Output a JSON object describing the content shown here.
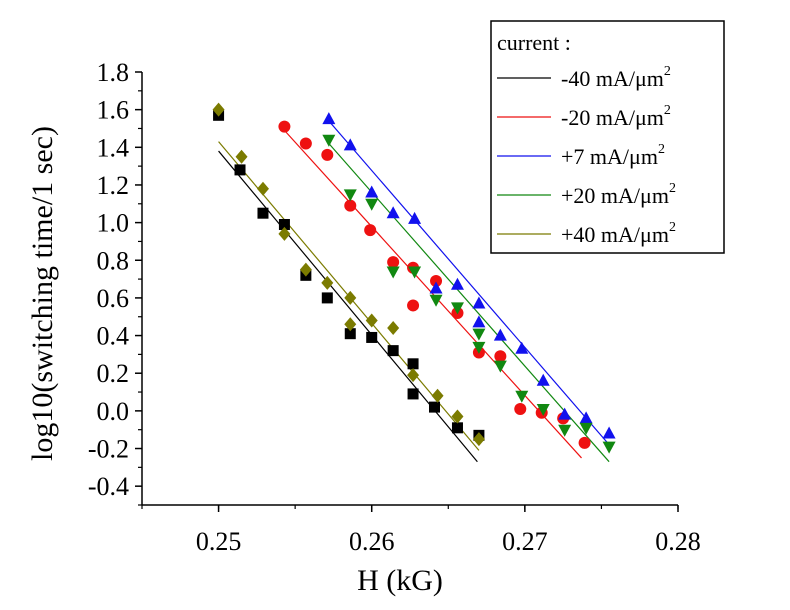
{
  "chart_data": {
    "type": "scatter",
    "xlabel": "H (kG)",
    "ylabel": "log10(switching time/1 sec)",
    "xlim": [
      0.245,
      0.28
    ],
    "ylim": [
      -0.5,
      1.8
    ],
    "x_ticks": [
      "0.25",
      "0.26",
      "0.27",
      "0.28"
    ],
    "x_tick_values": [
      0.25,
      0.26,
      0.27,
      0.28
    ],
    "y_ticks": [
      "1.8",
      "1.6",
      "1.4",
      "1.2",
      "1.0",
      "0.8",
      "0.6",
      "0.4",
      "0.2",
      "0.0",
      "-0.2",
      "-0.4"
    ],
    "y_tick_values": [
      1.8,
      1.6,
      1.4,
      1.2,
      1.0,
      0.8,
      0.6,
      0.4,
      0.2,
      0.0,
      -0.2,
      -0.4
    ],
    "grid": false,
    "legend": {
      "title": "current :",
      "position": "top-right",
      "entries": [
        {
          "label_main": "-40 mA/μm",
          "label_sup": "2"
        },
        {
          "label_main": "-20 mA/μm",
          "label_sup": "2"
        },
        {
          "label_main": "+7  mA/μm",
          "label_sup": "2"
        },
        {
          "label_main": "+20  mA/μm",
          "label_sup": "2"
        },
        {
          "label_main": "+40 mA/μm",
          "label_sup": "2"
        }
      ]
    },
    "series": [
      {
        "name": "-40 mA/μm2",
        "color": "#000000",
        "marker": "square",
        "x": [
          0.25,
          0.2514,
          0.2529,
          0.2543,
          0.2557,
          0.2571,
          0.2586,
          0.26,
          0.2614,
          0.2627,
          0.2627,
          0.2641,
          0.2656,
          0.267
        ],
        "y": [
          1.57,
          1.28,
          1.05,
          0.99,
          0.72,
          0.6,
          0.41,
          0.39,
          0.32,
          0.25,
          0.09,
          0.02,
          -0.09,
          -0.13
        ],
        "fit": [
          [
            0.25,
            1.38
          ],
          [
            0.2669,
            -0.27
          ]
        ]
      },
      {
        "name": "-20 mA/μm2",
        "color": "#ee1111",
        "marker": "circle",
        "x": [
          0.2543,
          0.2557,
          0.2571,
          0.2586,
          0.2599,
          0.2614,
          0.2627,
          0.2627,
          0.2642,
          0.2656,
          0.267,
          0.2684,
          0.2697,
          0.2711,
          0.2725,
          0.2739
        ],
        "y": [
          1.51,
          1.42,
          1.36,
          1.09,
          0.96,
          0.79,
          0.76,
          0.56,
          0.69,
          0.52,
          0.31,
          0.29,
          0.01,
          -0.01,
          -0.04,
          -0.17
        ],
        "fit": [
          [
            0.2543,
            1.49
          ],
          [
            0.2737,
            -0.25
          ]
        ]
      },
      {
        "name": "+7  mA/μm2",
        "color": "#1111ee",
        "marker": "triangle-up",
        "x": [
          0.2572,
          0.2586,
          0.26,
          0.2614,
          0.2628,
          0.2642,
          0.2656,
          0.267,
          0.267,
          0.2684,
          0.2698,
          0.2712,
          0.2726,
          0.274,
          0.2755
        ],
        "y": [
          1.55,
          1.41,
          1.16,
          1.05,
          1.02,
          0.65,
          0.67,
          0.57,
          0.47,
          0.4,
          0.33,
          0.16,
          -0.02,
          -0.04,
          -0.12
        ],
        "fit": [
          [
            0.2572,
            1.54
          ],
          [
            0.2754,
            -0.17
          ]
        ]
      },
      {
        "name": "+20  mA/μm2",
        "color": "#118811",
        "marker": "triangle-down",
        "x": [
          0.2572,
          0.2586,
          0.26,
          0.2614,
          0.2628,
          0.2642,
          0.2656,
          0.267,
          0.267,
          0.2684,
          0.2698,
          0.2712,
          0.2726,
          0.274,
          0.2755
        ],
        "y": [
          1.44,
          1.15,
          1.1,
          0.74,
          0.74,
          0.59,
          0.55,
          0.41,
          0.34,
          0.24,
          0.08,
          0.01,
          -0.1,
          -0.09,
          -0.19
        ],
        "fit": [
          [
            0.2572,
            1.42
          ],
          [
            0.2755,
            -0.27
          ]
        ]
      },
      {
        "name": "+40 mA/μm2",
        "color": "#7b7b00",
        "marker": "diamond",
        "x": [
          0.25,
          0.2515,
          0.2529,
          0.2543,
          0.2557,
          0.2571,
          0.2586,
          0.2586,
          0.26,
          0.2614,
          0.2627,
          0.2643,
          0.2656,
          0.267
        ],
        "y": [
          1.6,
          1.35,
          1.18,
          0.94,
          0.75,
          0.68,
          0.6,
          0.46,
          0.48,
          0.44,
          0.19,
          0.08,
          -0.03,
          -0.15
        ],
        "fit": [
          [
            0.25,
            1.43
          ],
          [
            0.267,
            -0.21
          ]
        ]
      }
    ]
  }
}
